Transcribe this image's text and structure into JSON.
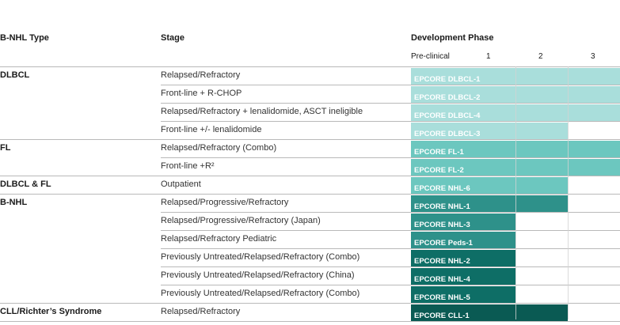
{
  "headers": {
    "type": "B-NHL Type",
    "stage": "Stage",
    "phase": "Development Phase"
  },
  "phase_columns": [
    "Pre-clinical",
    "1",
    "2",
    "3"
  ],
  "types": {
    "dlbcl": "DLBCL",
    "fl": "FL",
    "dlbcl_fl": "DLBCL & FL",
    "bnhl": "B-NHL",
    "cll": "CLL/Richter’s Syndrome"
  },
  "trials": [
    {
      "stage": "Relapsed/Refractory",
      "trial": "EPCORE DLBCL-1",
      "phase": 3,
      "color": "#a9dedb"
    },
    {
      "stage": "Front-line + R-CHOP",
      "trial": "EPCORE DLBCL-2",
      "phase": 3,
      "color": "#a9dedb"
    },
    {
      "stage": "Relapsed/Refractory + lenalidomide, ASCT ineligible",
      "trial": "EPCORE DLBCL-4",
      "phase": 3,
      "color": "#a9dedb"
    },
    {
      "stage": "Front-line +/- lenalidomide",
      "trial": "EPCORE DLBCL-3",
      "phase": 2,
      "color": "#a9dedb"
    },
    {
      "stage": "Relapsed/Refractory (Combo)",
      "trial": "EPCORE FL-1",
      "phase": 3,
      "color": "#6cc7bf"
    },
    {
      "stage": "Front-line +R²",
      "trial": "EPCORE FL-2",
      "phase": 3,
      "color": "#6cc7bf"
    },
    {
      "stage": "Outpatient",
      "trial": "EPCORE NHL-6",
      "phase": 2,
      "color": "#6cc7bf"
    },
    {
      "stage": "Relapsed/Progressive/Refractory",
      "trial": "EPCORE NHL-1",
      "phase": 2,
      "color": "#2e918a"
    },
    {
      "stage": "Relapsed/Progressive/Refractory (Japan)",
      "trial": "EPCORE NHL-3",
      "phase": 1,
      "color": "#2e918a"
    },
    {
      "stage": "Relapsed/Refractory Pediatric",
      "trial": "EPCORE Peds-1",
      "phase": 1,
      "color": "#2e918a"
    },
    {
      "stage": "Previously Untreated/Relapsed/Refractory (Combo)",
      "trial": "EPCORE NHL-2",
      "phase": 1,
      "color": "#0e6e66"
    },
    {
      "stage": "Previously Untreated/Relapsed/Refractory (China)",
      "trial": "EPCORE NHL-4",
      "phase": 1,
      "color": "#0e6e66"
    },
    {
      "stage": "Previously Untreated/Relapsed/Refractory (Combo)",
      "trial": "EPCORE NHL-5",
      "phase": 1,
      "color": "#0e6e66"
    },
    {
      "stage": "Relapsed/Refractory",
      "trial": "EPCORE CLL-1",
      "phase": 2,
      "color": "#0a5a53"
    }
  ]
}
